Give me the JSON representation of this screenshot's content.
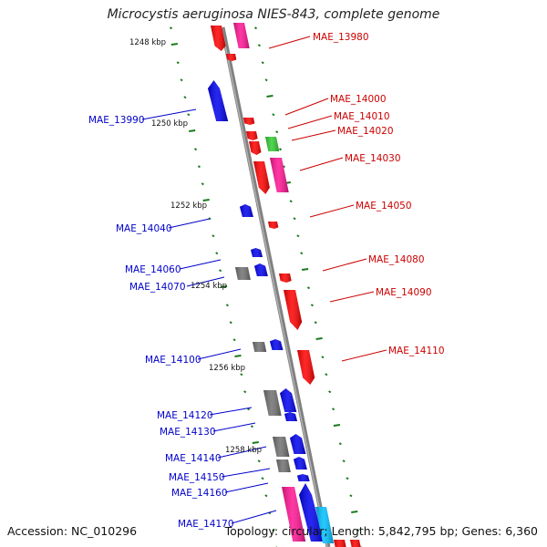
{
  "title": "Microcystis aeruginosa NIES-843, complete genome",
  "footer": {
    "accession": "Accession: NC_010296",
    "meta": "Topology: circular; Length: 5,842,795 bp; Genes: 6,360"
  },
  "colors": {
    "axis": "#808080",
    "red": "#ff0000",
    "pink": "#ff1493",
    "blue": "#0000ee",
    "gray": "#707070",
    "green": "#33cc33",
    "cyan": "#00bfff",
    "label_red": "#cc0000",
    "label_blue": "#0000cc",
    "tick": "#1a7a1a"
  },
  "scale_labels": [
    "1248 kbp",
    "1250 kbp",
    "1252 kbp",
    "1254 kbp",
    "1256 kbp",
    "1258 kbp"
  ],
  "genes_right": [
    "MAE_13980",
    "MAE_14000",
    "MAE_14010",
    "MAE_14020",
    "MAE_14030",
    "MAE_14050",
    "MAE_14080",
    "MAE_14090",
    "MAE_14110"
  ],
  "genes_left": [
    "MAE_13990",
    "MAE_14040",
    "MAE_14060",
    "MAE_14070",
    "MAE_14100",
    "MAE_14120",
    "MAE_14130",
    "MAE_14140",
    "MAE_14150",
    "MAE_14160",
    "MAE_14170"
  ]
}
